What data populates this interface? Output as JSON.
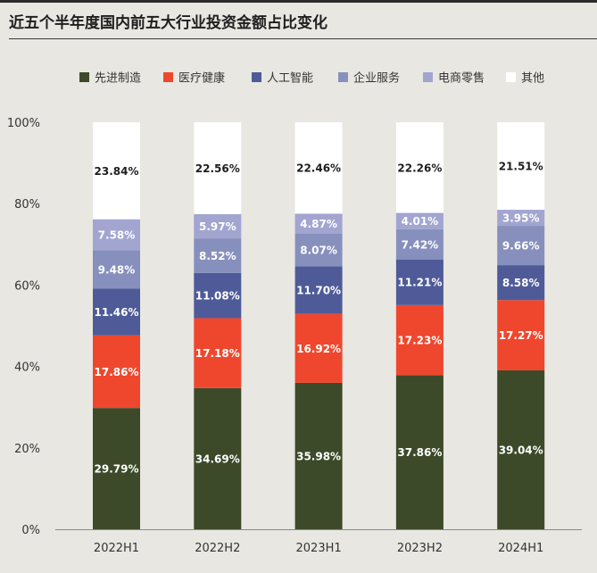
{
  "header": {
    "title": "近五个半年度国内前五大行业投资金额占比变化"
  },
  "chart_data": {
    "type": "bar",
    "stacked": true,
    "title": "近五个半年度国内前五大行业投资金额占比变化",
    "xlabel": "",
    "ylabel": "",
    "ylim": [
      0,
      100
    ],
    "yticks": [
      "0%",
      "20%",
      "40%",
      "60%",
      "80%",
      "100%"
    ],
    "ytick_values": [
      0,
      20,
      40,
      60,
      80,
      100
    ],
    "grid": false,
    "legend_position": "top",
    "categories": [
      "2022H1",
      "2022H2",
      "2023H1",
      "2023H2",
      "2024H1"
    ],
    "series": [
      {
        "name": "先进制造",
        "color": "#3c4a29",
        "label_color": "#ffffff",
        "values": [
          29.79,
          34.69,
          35.98,
          37.86,
          39.04
        ],
        "labels": [
          "29.79%",
          "34.69%",
          "35.98%",
          "37.86%",
          "39.04%"
        ]
      },
      {
        "name": "医疗健康",
        "color": "#ef472d",
        "label_color": "#ffffff",
        "values": [
          17.86,
          17.18,
          16.92,
          17.23,
          17.27
        ],
        "labels": [
          "17.86%",
          "17.18%",
          "16.92%",
          "17.23%",
          "17.27%"
        ]
      },
      {
        "name": "人工智能",
        "color": "#4f5b98",
        "label_color": "#ffffff",
        "values": [
          11.46,
          11.08,
          11.7,
          11.21,
          8.58
        ],
        "labels": [
          "11.46%",
          "11.08%",
          "11.70%",
          "11.21%",
          "8.58%"
        ]
      },
      {
        "name": "企业服务",
        "color": "#8790bd",
        "label_color": "#ffffff",
        "values": [
          9.48,
          8.52,
          8.07,
          7.42,
          9.66
        ],
        "labels": [
          "9.48%",
          "8.52%",
          "8.07%",
          "7.42%",
          "9.66%"
        ]
      },
      {
        "name": "电商零售",
        "color": "#a1a5d0",
        "label_color": "#ffffff",
        "values": [
          7.58,
          5.97,
          4.87,
          4.01,
          3.95
        ],
        "labels": [
          "7.58%",
          "5.97%",
          "4.87%",
          "4.01%",
          "3.95%"
        ]
      },
      {
        "name": "其他",
        "color": "#ffffff",
        "label_color": "#1e1e1e",
        "values": [
          23.84,
          22.56,
          22.46,
          22.26,
          21.51
        ],
        "labels": [
          "23.84%",
          "22.56%",
          "22.46%",
          "22.26%",
          "21.51%"
        ]
      }
    ]
  }
}
